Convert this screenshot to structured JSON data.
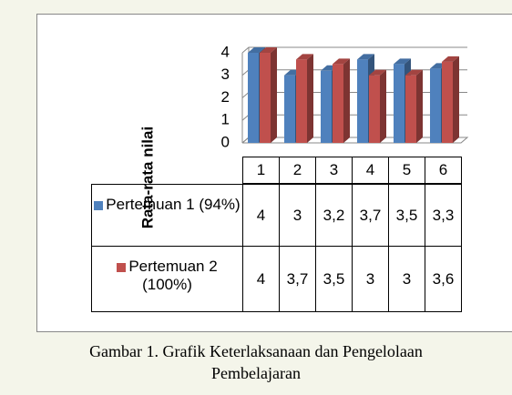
{
  "chart_data": {
    "type": "bar3d",
    "ylabel": "Rata-rata nilai",
    "categories": [
      "1",
      "2",
      "3",
      "4",
      "5",
      "6"
    ],
    "series": [
      {
        "name": "Pertemuan 1 (94%)",
        "color": "#4f81bd",
        "values": [
          4,
          3,
          3.2,
          3.7,
          3.5,
          3.3
        ],
        "value_labels": [
          "4",
          "3",
          "3,2",
          "3,7",
          "3,5",
          "3,3"
        ]
      },
      {
        "name": "Pertemuan 2 (100%)",
        "color": "#c0504d",
        "values": [
          4,
          3.7,
          3.5,
          3,
          3,
          3.6
        ],
        "value_labels": [
          "4",
          "3,7",
          "3,5",
          "3",
          "3",
          "3,6"
        ]
      }
    ],
    "ylim": [
      0,
      4
    ],
    "yticks": [
      0,
      1,
      2,
      3,
      4
    ],
    "grid": true,
    "caption": [
      "Gambar 1. Grafik Keterlaksanaan dan Pengelolaan",
      "Pembelajaran"
    ]
  }
}
